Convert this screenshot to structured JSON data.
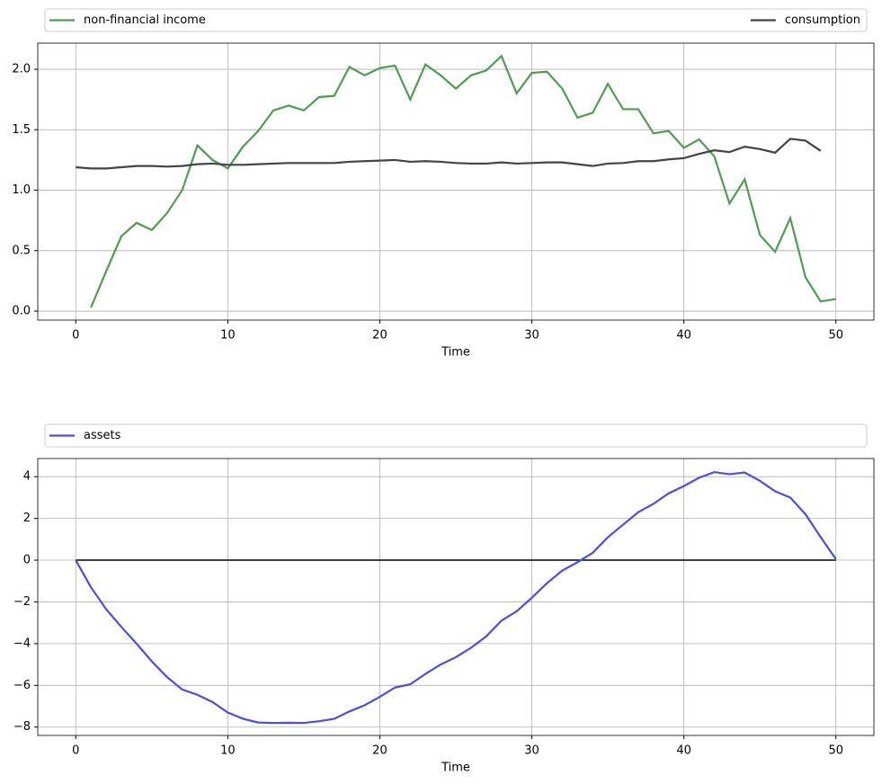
{
  "chart_data": [
    {
      "type": "line",
      "xlabel": "Time",
      "x": [
        0,
        1,
        2,
        3,
        4,
        5,
        6,
        7,
        8,
        9,
        10,
        11,
        12,
        13,
        14,
        15,
        16,
        17,
        18,
        19,
        20,
        21,
        22,
        23,
        24,
        25,
        26,
        27,
        28,
        29,
        30,
        31,
        32,
        33,
        34,
        35,
        36,
        37,
        38,
        39,
        40,
        41,
        42,
        43,
        44,
        45,
        46,
        47,
        48,
        49,
        50
      ],
      "series": [
        {
          "name": "non-financial income",
          "color": "#4c9f4c",
          "values": [
            null,
            0.03,
            0.33,
            0.62,
            0.73,
            0.67,
            0.81,
            1.0,
            1.37,
            1.25,
            1.18,
            1.36,
            1.49,
            1.66,
            1.7,
            1.66,
            1.77,
            1.78,
            2.02,
            1.95,
            2.01,
            2.03,
            1.75,
            2.04,
            1.95,
            1.84,
            1.95,
            1.99,
            2.11,
            1.8,
            1.97,
            1.98,
            1.84,
            1.6,
            1.64,
            1.88,
            1.67,
            1.67,
            1.47,
            1.49,
            1.35,
            1.42,
            1.28,
            0.89,
            1.09,
            0.63,
            0.49,
            0.77,
            0.28,
            0.08,
            0.1
          ]
        },
        {
          "name": "consumption",
          "color": "#444444",
          "values": [
            1.19,
            1.18,
            1.18,
            1.19,
            1.2,
            1.2,
            1.195,
            1.2,
            1.215,
            1.22,
            1.21,
            1.21,
            1.215,
            1.22,
            1.225,
            1.225,
            1.225,
            1.225,
            1.235,
            1.24,
            1.245,
            1.25,
            1.235,
            1.24,
            1.235,
            1.225,
            1.22,
            1.22,
            1.23,
            1.22,
            1.225,
            1.23,
            1.23,
            1.215,
            1.2,
            1.22,
            1.225,
            1.24,
            1.24,
            1.255,
            1.265,
            1.3,
            1.33,
            1.315,
            1.36,
            1.34,
            1.31,
            1.425,
            1.41,
            1.325,
            null
          ]
        }
      ],
      "xlim": [
        -2.5,
        52.5
      ],
      "xticks": [
        0,
        10,
        20,
        30,
        40,
        50
      ],
      "ylim": [
        -0.074,
        2.216
      ],
      "yticks": [
        {
          "value": 0,
          "label": "0.0"
        },
        0.5,
        {
          "value": 1,
          "label": "1.0"
        },
        1.5,
        {
          "value": 2,
          "label": "2.0"
        }
      ],
      "grid": true
    },
    {
      "type": "line",
      "xlabel": "Time",
      "x": [
        0,
        1,
        2,
        3,
        4,
        5,
        6,
        7,
        8,
        9,
        10,
        11,
        12,
        13,
        14,
        15,
        16,
        17,
        18,
        19,
        20,
        21,
        22,
        23,
        24,
        25,
        26,
        27,
        28,
        29,
        30,
        31,
        32,
        33,
        34,
        35,
        36,
        37,
        38,
        39,
        40,
        41,
        42,
        43,
        44,
        45,
        46,
        47,
        48,
        49,
        50
      ],
      "series": [
        {
          "name": "assets",
          "color": "#4b4bef",
          "values": [
            0,
            -1.3,
            -2.35,
            -3.2,
            -4.0,
            -4.85,
            -5.6,
            -6.2,
            -6.45,
            -6.8,
            -7.3,
            -7.6,
            -7.78,
            -7.8,
            -7.79,
            -7.8,
            -7.72,
            -7.6,
            -7.25,
            -6.95,
            -6.55,
            -6.1,
            -5.95,
            -5.45,
            -5.0,
            -4.65,
            -4.2,
            -3.65,
            -2.9,
            -2.45,
            -1.8,
            -1.1,
            -0.5,
            -0.1,
            0.35,
            1.1,
            1.7,
            2.3,
            2.7,
            3.2,
            3.55,
            3.95,
            4.22,
            4.12,
            4.2,
            3.8,
            3.3,
            3.0,
            2.2,
            1.1,
            0.05
          ]
        }
      ],
      "hline": {
        "y": 0,
        "color": "#000000"
      },
      "xlim": [
        -2.5,
        52.5
      ],
      "xticks": [
        0,
        10,
        20,
        30,
        40,
        50
      ],
      "ylim": [
        -8.4,
        4.87
      ],
      "yticks": [
        {
          "value": -8,
          "label": "−8"
        },
        {
          "value": -6,
          "label": "−6"
        },
        {
          "value": -4,
          "label": "−4"
        },
        {
          "value": -2,
          "label": "−2"
        },
        0,
        2,
        4
      ],
      "grid": true
    }
  ]
}
